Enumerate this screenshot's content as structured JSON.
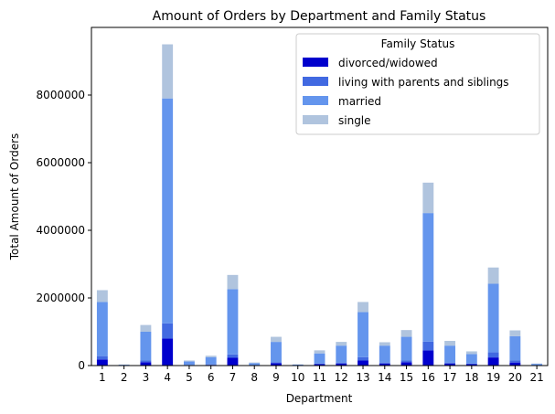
{
  "chart_data": {
    "type": "bar",
    "stacked": true,
    "title": "Amount of Orders by Department and Family Status",
    "xlabel": "Department",
    "ylabel": "Total Amount of Orders",
    "categories": [
      "1",
      "2",
      "3",
      "4",
      "5",
      "6",
      "7",
      "8",
      "9",
      "10",
      "11",
      "12",
      "13",
      "14",
      "15",
      "16",
      "17",
      "18",
      "19",
      "20",
      "21"
    ],
    "ylim": [
      0,
      10000000
    ],
    "yticks": [
      0,
      2000000,
      4000000,
      6000000,
      8000000
    ],
    "ytick_labels": [
      "0",
      "2000000",
      "4000000",
      "6000000",
      "8000000"
    ],
    "legend": {
      "title": "Family Status",
      "placement": "top-right"
    },
    "grid": false,
    "series": [
      {
        "name": "divorced/widowed",
        "color": "#0000CD",
        "values": [
          180000,
          4000,
          100000,
          800000,
          10000,
          20000,
          230000,
          8000,
          70000,
          3000,
          40000,
          60000,
          150000,
          60000,
          100000,
          450000,
          60000,
          40000,
          240000,
          90000,
          5000
        ]
      },
      {
        "name": "living with parents and siblings",
        "color": "#4169E1",
        "values": [
          100000,
          3000,
          50000,
          450000,
          10000,
          15000,
          100000,
          5000,
          30000,
          2000,
          20000,
          30000,
          100000,
          30000,
          50000,
          260000,
          30000,
          20000,
          150000,
          60000,
          5000
        ]
      },
      {
        "name": "married",
        "color": "#6495ED",
        "values": [
          1600000,
          18000,
          850000,
          6650000,
          100000,
          215000,
          1930000,
          60000,
          600000,
          25000,
          300000,
          500000,
          1330000,
          500000,
          700000,
          3800000,
          500000,
          280000,
          2030000,
          720000,
          40000
        ]
      },
      {
        "name": "single",
        "color": "#B0C4DE",
        "values": [
          350000,
          5000,
          200000,
          1600000,
          30000,
          40000,
          420000,
          17000,
          150000,
          5000,
          90000,
          110000,
          300000,
          100000,
          200000,
          900000,
          140000,
          80000,
          480000,
          170000,
          10000
        ]
      }
    ]
  }
}
